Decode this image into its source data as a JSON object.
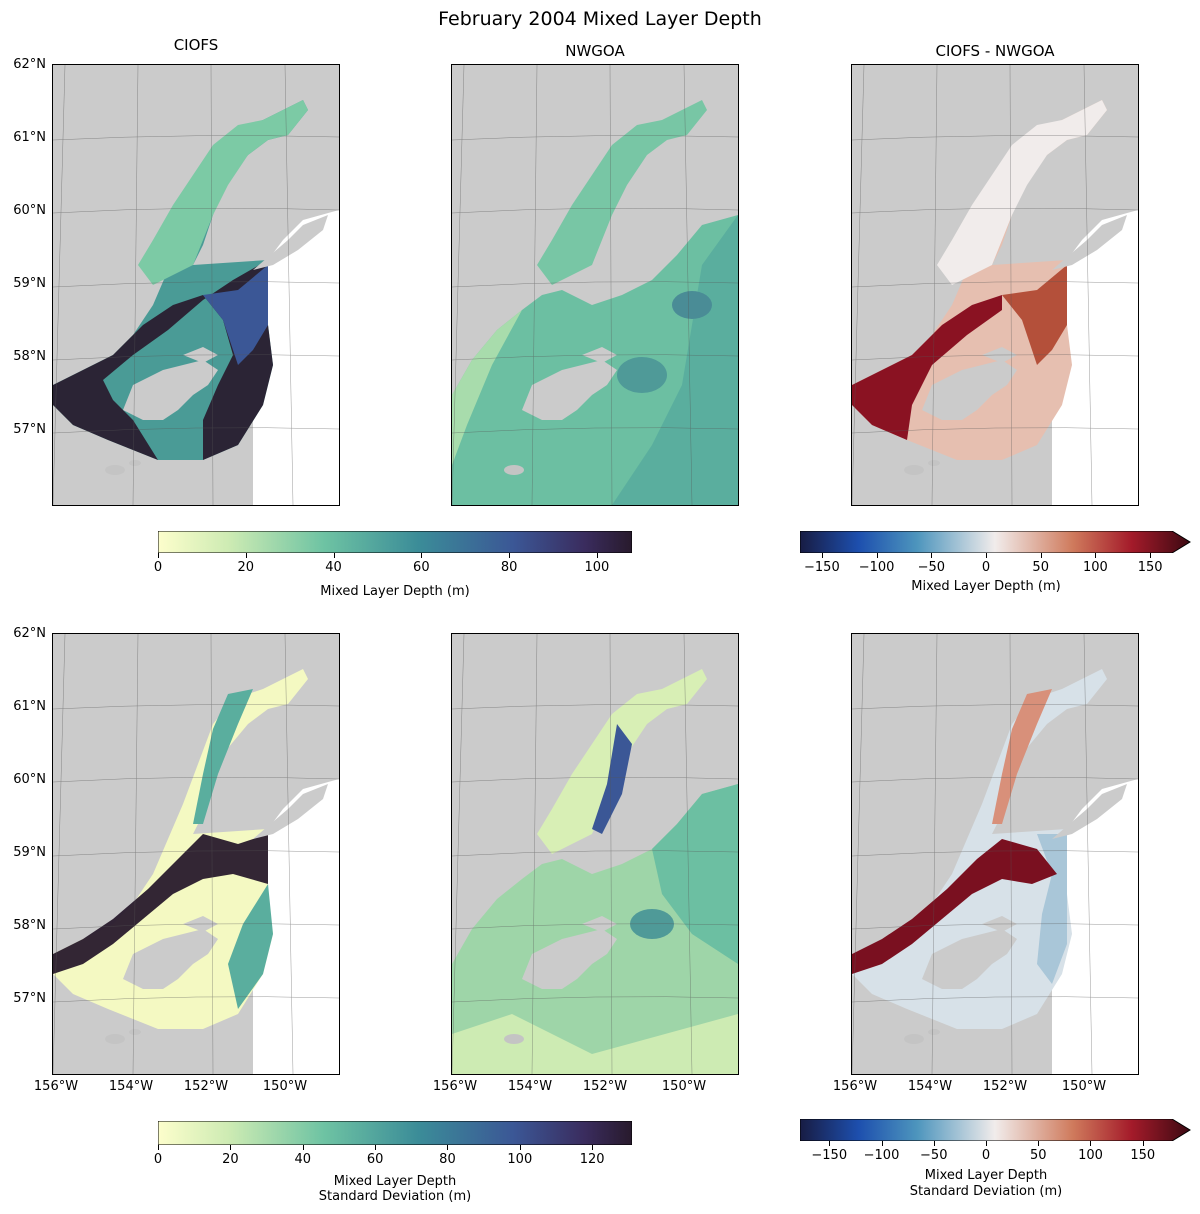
{
  "title": "February 2004 Mixed Layer Depth",
  "columns": [
    "CIOFS",
    "NWGOA",
    "CIOFS - NWGOA"
  ],
  "lat_ticks": [
    "62°N",
    "61°N",
    "60°N",
    "59°N",
    "58°N",
    "57°N"
  ],
  "lon_ticks": [
    "156°W",
    "154°W",
    "152°W",
    "150°W"
  ],
  "colorbars": {
    "row1_mld": {
      "label": "Mixed Layer Depth (m)",
      "ticks": [
        "0",
        "20",
        "40",
        "60",
        "80",
        "100"
      ],
      "range": [
        0,
        108
      ],
      "colormap": "deep"
    },
    "row1_diff": {
      "label": "Mixed Layer Depth (m)",
      "ticks": [
        "−150",
        "−100",
        "−50",
        "0",
        "50",
        "100",
        "150"
      ],
      "range": [
        -170,
        170
      ],
      "colormap": "balance",
      "extend": "max"
    },
    "row2_std": {
      "label_line1": "Mixed Layer Depth",
      "label_line2": "Standard Deviation (m)",
      "ticks": [
        "0",
        "20",
        "40",
        "60",
        "80",
        "100",
        "120"
      ],
      "range": [
        0,
        131
      ],
      "colormap": "deep"
    },
    "row2_diff": {
      "label_line1": "Mixed Layer Depth",
      "label_line2": "Standard Deviation (m)",
      "ticks": [
        "−150",
        "−100",
        "−50",
        "0",
        "50",
        "100",
        "150"
      ],
      "range": [
        -178,
        178
      ],
      "colormap": "balance",
      "extend": "max"
    }
  },
  "colors": {
    "land": "#cbcbcb",
    "deep_low": "#fdfecc",
    "deep_mid": "#5ab4a0",
    "deep_high": "#281a2c",
    "balance_low": "#181c43",
    "balance_mid": "#f1eceb",
    "balance_high": "#3c0912"
  }
}
